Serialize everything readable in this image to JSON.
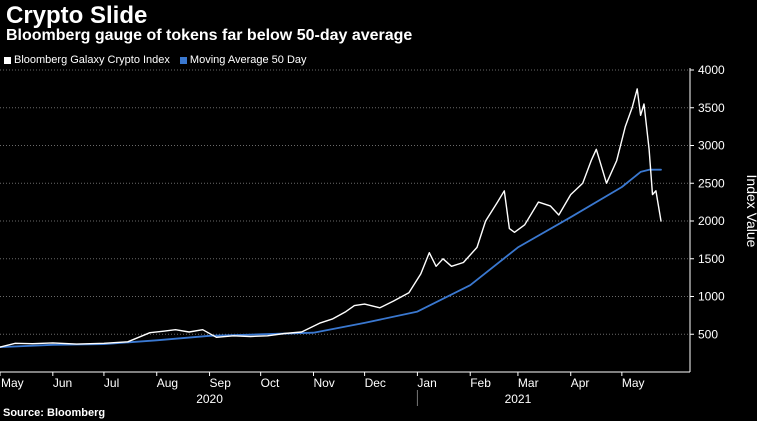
{
  "chart_data": {
    "type": "line",
    "title": "Crypto Slide",
    "subtitle": "Bloomberg gauge of tokens far below 50-day average",
    "source": "Source: Bloomberg",
    "ylabel": "Index Value",
    "xlabel": "",
    "ylim": [
      0,
      4000
    ],
    "yticks": [
      500,
      1000,
      1500,
      2000,
      2500,
      3000,
      3500,
      4000
    ],
    "x_range": [
      "2020-05-01",
      "2021-06-10"
    ],
    "x_tick_labels": [
      {
        "label": "May",
        "date": "2020-05-01"
      },
      {
        "label": "Jun",
        "date": "2020-06-01"
      },
      {
        "label": "Jul",
        "date": "2020-07-01"
      },
      {
        "label": "Aug",
        "date": "2020-08-01"
      },
      {
        "label": "Sep",
        "date": "2020-09-01"
      },
      {
        "label": "Oct",
        "date": "2020-10-01"
      },
      {
        "label": "Nov",
        "date": "2020-11-01"
      },
      {
        "label": "Dec",
        "date": "2020-12-01"
      },
      {
        "label": "Jan",
        "date": "2021-01-01"
      },
      {
        "label": "Feb",
        "date": "2021-02-01"
      },
      {
        "label": "Mar",
        "date": "2021-03-01"
      },
      {
        "label": "Apr",
        "date": "2021-04-01"
      },
      {
        "label": "May",
        "date": "2021-05-01"
      }
    ],
    "year_labels": [
      {
        "label": "2020",
        "date": "2020-09-01"
      },
      {
        "label": "2021",
        "date": "2021-03-01"
      }
    ],
    "year_divider": "2021-01-01",
    "grid": "horizontal dashed",
    "y_axis_position": "right",
    "legend": "top-left",
    "series": [
      {
        "name": "Bloomberg Galaxy Crypto Index",
        "color": "#ffffff",
        "points": [
          [
            "2020-05-01",
            330
          ],
          [
            "2020-05-10",
            380
          ],
          [
            "2020-05-20",
            375
          ],
          [
            "2020-06-01",
            385
          ],
          [
            "2020-06-15",
            370
          ],
          [
            "2020-07-01",
            380
          ],
          [
            "2020-07-15",
            400
          ],
          [
            "2020-07-28",
            520
          ],
          [
            "2020-08-05",
            540
          ],
          [
            "2020-08-12",
            560
          ],
          [
            "2020-08-20",
            530
          ],
          [
            "2020-08-28",
            560
          ],
          [
            "2020-09-05",
            460
          ],
          [
            "2020-09-15",
            480
          ],
          [
            "2020-09-25",
            470
          ],
          [
            "2020-10-05",
            480
          ],
          [
            "2020-10-15",
            510
          ],
          [
            "2020-10-25",
            530
          ],
          [
            "2020-11-05",
            650
          ],
          [
            "2020-11-12",
            700
          ],
          [
            "2020-11-20",
            800
          ],
          [
            "2020-11-25",
            880
          ],
          [
            "2020-12-01",
            900
          ],
          [
            "2020-12-10",
            850
          ],
          [
            "2020-12-18",
            940
          ],
          [
            "2020-12-27",
            1050
          ],
          [
            "2021-01-03",
            1300
          ],
          [
            "2021-01-08",
            1580
          ],
          [
            "2021-01-12",
            1400
          ],
          [
            "2021-01-16",
            1500
          ],
          [
            "2021-01-21",
            1400
          ],
          [
            "2021-01-28",
            1450
          ],
          [
            "2021-02-05",
            1650
          ],
          [
            "2021-02-10",
            2000
          ],
          [
            "2021-02-17",
            2250
          ],
          [
            "2021-02-21",
            2400
          ],
          [
            "2021-02-24",
            1900
          ],
          [
            "2021-02-27",
            1850
          ],
          [
            "2021-03-05",
            1950
          ],
          [
            "2021-03-13",
            2250
          ],
          [
            "2021-03-20",
            2200
          ],
          [
            "2021-03-25",
            2080
          ],
          [
            "2021-04-01",
            2350
          ],
          [
            "2021-04-08",
            2500
          ],
          [
            "2021-04-13",
            2800
          ],
          [
            "2021-04-16",
            2950
          ],
          [
            "2021-04-22",
            2500
          ],
          [
            "2021-04-28",
            2800
          ],
          [
            "2021-05-03",
            3250
          ],
          [
            "2021-05-07",
            3500
          ],
          [
            "2021-05-10",
            3750
          ],
          [
            "2021-05-12",
            3400
          ],
          [
            "2021-05-14",
            3550
          ],
          [
            "2021-05-17",
            2950
          ],
          [
            "2021-05-19",
            2350
          ],
          [
            "2021-05-21",
            2400
          ],
          [
            "2021-05-24",
            2000
          ]
        ]
      },
      {
        "name": "Moving Average 50 Day",
        "color": "#3a78d0",
        "points": [
          [
            "2020-05-01",
            330
          ],
          [
            "2020-06-01",
            360
          ],
          [
            "2020-07-01",
            370
          ],
          [
            "2020-08-01",
            420
          ],
          [
            "2020-09-01",
            480
          ],
          [
            "2020-10-01",
            500
          ],
          [
            "2020-11-01",
            520
          ],
          [
            "2020-12-01",
            650
          ],
          [
            "2021-01-01",
            800
          ],
          [
            "2021-02-01",
            1150
          ],
          [
            "2021-03-01",
            1650
          ],
          [
            "2021-04-01",
            2050
          ],
          [
            "2021-05-01",
            2450
          ],
          [
            "2021-05-12",
            2650
          ],
          [
            "2021-05-17",
            2680
          ],
          [
            "2021-05-24",
            2680
          ]
        ]
      }
    ]
  }
}
